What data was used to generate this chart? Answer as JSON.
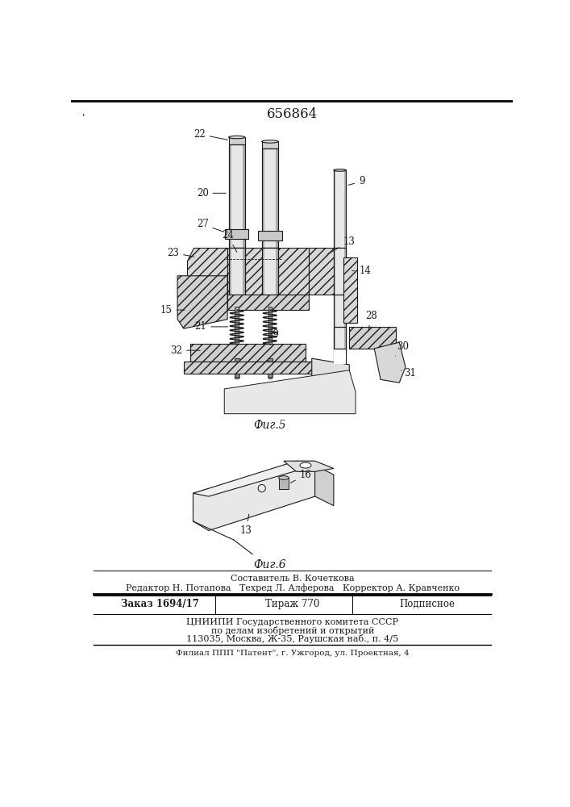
{
  "title_number": "656864",
  "fig5_caption": "Фиг.5",
  "fig6_caption": "Фиг.6",
  "footer_line1": "Составитель В. Кочеткова",
  "footer_line2": "Редактор Н. Потапова   Техред Л. Алферова   Корректор А. Кравченко",
  "footer_zakaz": "Заказ 1694/17",
  "footer_tirazh": "Тираж 770",
  "footer_podp": "Подписное",
  "footer_org": "ЦНИИПИ Государственного комитета СССР",
  "footer_dept": "по делам изобретений и открытий",
  "footer_addr": "113035, Москва, Ж-35, Раушская наб., п. 4/5",
  "footer_filial": "Филиал ППП \"Патент\", г. Ужгород, ул. Проектная, 4",
  "text_color": "#1a1a1a",
  "line_color": "#1a1a1a",
  "hatch_color": "#555555"
}
